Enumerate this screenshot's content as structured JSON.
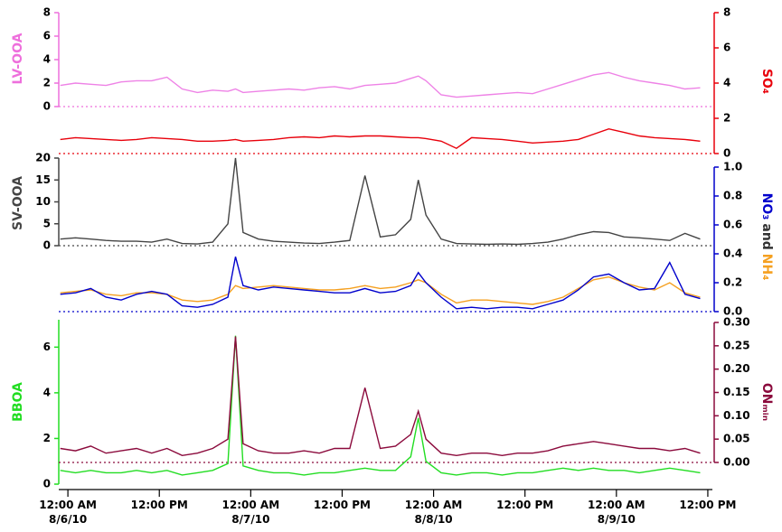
{
  "chart_data": [
    {
      "type": "line",
      "ylabel": "LV-OOA",
      "ycolor": "#ee6fdc",
      "y2label": "SO₄",
      "y2color": "#e8000b",
      "ylim": [
        0,
        8
      ],
      "yticks": [
        0,
        2,
        4,
        6,
        8
      ],
      "y2lim": [
        0,
        8
      ],
      "y2ticks": [
        0,
        2,
        4,
        6,
        8
      ],
      "x": [
        -1,
        1,
        3,
        5,
        7,
        9,
        11,
        13,
        15,
        17,
        19,
        21,
        22,
        23,
        25,
        27,
        29,
        31,
        33,
        35,
        37,
        39,
        41,
        43,
        45,
        46,
        47,
        49,
        51,
        53,
        55,
        57,
        59,
        61,
        63,
        65,
        67,
        69,
        71,
        73,
        75,
        77,
        79,
        81,
        83
      ],
      "series": [
        {
          "color": "#ee82e6",
          "axis": "y",
          "values": [
            1.8,
            2.0,
            1.9,
            1.8,
            2.1,
            2.2,
            2.2,
            2.5,
            1.5,
            1.2,
            1.4,
            1.3,
            1.5,
            1.2,
            1.3,
            1.4,
            1.5,
            1.4,
            1.6,
            1.7,
            1.5,
            1.8,
            1.9,
            2.0,
            2.4,
            2.6,
            2.2,
            1.0,
            0.8,
            0.9,
            1.0,
            1.1,
            1.2,
            1.1,
            1.5,
            1.9,
            2.3,
            2.7,
            2.9,
            2.5,
            2.2,
            2.0,
            1.8,
            1.5,
            1.6
          ]
        },
        {
          "color": "#e8000b",
          "axis": "y2",
          "values": [
            0.8,
            0.9,
            0.85,
            0.8,
            0.75,
            0.8,
            0.9,
            0.85,
            0.8,
            0.7,
            0.7,
            0.75,
            0.8,
            0.7,
            0.75,
            0.8,
            0.9,
            0.95,
            0.9,
            1.0,
            0.95,
            1.0,
            1.0,
            0.95,
            0.9,
            0.9,
            0.85,
            0.7,
            0.3,
            0.9,
            0.85,
            0.8,
            0.7,
            0.6,
            0.65,
            0.7,
            0.8,
            1.1,
            1.4,
            1.2,
            1.0,
            0.9,
            0.85,
            0.8,
            0.7
          ]
        }
      ]
    },
    {
      "type": "line",
      "ylabel": "SV-OOA",
      "ycolor": "#444444",
      "y2label": [
        {
          "text": "NO₃",
          "color": "#0000cc"
        },
        {
          "text": "and",
          "color": "#333333"
        },
        {
          "text": "NH₄",
          "color": "#f5a020"
        }
      ],
      "y2color": "#0000cc",
      "ylim": [
        0,
        20
      ],
      "yticks": [
        0,
        5,
        10,
        15,
        20
      ],
      "y2lim": [
        0,
        1
      ],
      "y2ticks": [
        {
          "value": 0,
          "label": "0.0"
        },
        {
          "value": 0.2,
          "label": "0.2"
        },
        {
          "value": 0.4,
          "label": "0.4"
        },
        {
          "value": 0.6,
          "label": "0.6"
        },
        {
          "value": 0.8,
          "label": "0.8"
        },
        {
          "value": 1,
          "label": "1.0"
        }
      ],
      "x": [
        -1,
        1,
        3,
        5,
        7,
        9,
        11,
        13,
        15,
        17,
        19,
        21,
        22,
        23,
        25,
        27,
        29,
        31,
        33,
        35,
        37,
        39,
        41,
        43,
        45,
        46,
        47,
        49,
        51,
        53,
        55,
        57,
        59,
        61,
        63,
        65,
        67,
        69,
        71,
        73,
        75,
        77,
        79,
        81,
        83
      ],
      "series": [
        {
          "color": "#444444",
          "axis": "y",
          "values": [
            1.5,
            1.8,
            1.5,
            1.2,
            1.0,
            1.0,
            0.8,
            1.5,
            0.5,
            0.4,
            0.8,
            5,
            20,
            3,
            1.5,
            1.0,
            0.8,
            0.6,
            0.5,
            0.8,
            1.2,
            16,
            2.0,
            2.5,
            6,
            15,
            7,
            1.5,
            0.5,
            0.4,
            0.3,
            0.4,
            0.3,
            0.5,
            0.8,
            1.5,
            2.5,
            3.2,
            3.0,
            2.0,
            1.8,
            1.5,
            1.2,
            2.8,
            1.5
          ]
        },
        {
          "color": "#f5a020",
          "axis": "y2",
          "values": [
            0.13,
            0.14,
            0.15,
            0.12,
            0.11,
            0.13,
            0.13,
            0.12,
            0.08,
            0.07,
            0.08,
            0.12,
            0.18,
            0.16,
            0.17,
            0.18,
            0.17,
            0.16,
            0.15,
            0.15,
            0.16,
            0.18,
            0.16,
            0.17,
            0.2,
            0.22,
            0.2,
            0.12,
            0.06,
            0.08,
            0.08,
            0.07,
            0.06,
            0.05,
            0.07,
            0.1,
            0.16,
            0.22,
            0.24,
            0.2,
            0.17,
            0.15,
            0.2,
            0.13,
            0.1
          ]
        },
        {
          "color": "#0000cc",
          "axis": "y2",
          "values": [
            0.12,
            0.13,
            0.16,
            0.1,
            0.08,
            0.12,
            0.14,
            0.12,
            0.04,
            0.03,
            0.05,
            0.1,
            0.38,
            0.18,
            0.15,
            0.17,
            0.16,
            0.15,
            0.14,
            0.13,
            0.13,
            0.16,
            0.13,
            0.14,
            0.18,
            0.27,
            0.2,
            0.1,
            0.02,
            0.03,
            0.02,
            0.03,
            0.03,
            0.02,
            0.05,
            0.08,
            0.15,
            0.24,
            0.26,
            0.2,
            0.15,
            0.16,
            0.34,
            0.12,
            0.09
          ]
        }
      ]
    },
    {
      "type": "line",
      "ylabel": "BBOA",
      "ycolor": "#22dd22",
      "y2label": "ONₘᵢₙ",
      "y2color": "#8b0a3c",
      "ylim": [
        0,
        7.2
      ],
      "yticks": [
        0,
        2,
        4,
        6
      ],
      "y2lim": [
        0,
        0.3
      ],
      "y2ticks": [
        {
          "value": 0,
          "label": "0.00"
        },
        {
          "value": 0.05,
          "label": "0.05"
        },
        {
          "value": 0.1,
          "label": "0.10"
        },
        {
          "value": 0.15,
          "label": "0.15"
        },
        {
          "value": 0.2,
          "label": "0.20"
        },
        {
          "value": 0.25,
          "label": "0.25"
        },
        {
          "value": 0.3,
          "label": "0.30"
        }
      ],
      "xlim": [
        -1.2,
        84.6
      ],
      "xticks": [
        {
          "value": 0,
          "label": "12:00 AM\n8/6/10"
        },
        {
          "value": 12,
          "label": "12:00 PM"
        },
        {
          "value": 24,
          "label": "12:00 AM\n8/7/10"
        },
        {
          "value": 36,
          "label": "12:00 PM"
        },
        {
          "value": 48,
          "label": "12:00 AM\n8/8/10"
        },
        {
          "value": 60,
          "label": "12:00 PM"
        },
        {
          "value": 72,
          "label": "12:00 AM\n8/9/10"
        },
        {
          "value": 84,
          "label": "12:00 PM"
        }
      ],
      "x": [
        -1,
        1,
        3,
        5,
        7,
        9,
        11,
        13,
        15,
        17,
        19,
        21,
        22,
        23,
        25,
        27,
        29,
        31,
        33,
        35,
        37,
        39,
        41,
        43,
        45,
        46,
        47,
        49,
        51,
        53,
        55,
        57,
        59,
        61,
        63,
        65,
        67,
        69,
        71,
        73,
        75,
        77,
        79,
        81,
        83
      ],
      "series": [
        {
          "color": "#22dd22",
          "axis": "y",
          "values": [
            0.6,
            0.5,
            0.6,
            0.5,
            0.5,
            0.6,
            0.5,
            0.6,
            0.4,
            0.5,
            0.6,
            0.9,
            6.5,
            0.8,
            0.6,
            0.5,
            0.5,
            0.4,
            0.5,
            0.5,
            0.6,
            0.7,
            0.6,
            0.6,
            1.2,
            2.9,
            1.0,
            0.5,
            0.4,
            0.5,
            0.5,
            0.4,
            0.5,
            0.5,
            0.6,
            0.7,
            0.6,
            0.7,
            0.6,
            0.6,
            0.5,
            0.6,
            0.7,
            0.6,
            0.5
          ]
        },
        {
          "color": "#8b0a3c",
          "axis": "y2",
          "values": [
            0.03,
            0.025,
            0.035,
            0.02,
            0.025,
            0.03,
            0.02,
            0.03,
            0.015,
            0.02,
            0.03,
            0.05,
            0.27,
            0.04,
            0.025,
            0.02,
            0.02,
            0.025,
            0.02,
            0.03,
            0.03,
            0.16,
            0.03,
            0.035,
            0.06,
            0.11,
            0.05,
            0.02,
            0.015,
            0.02,
            0.02,
            0.015,
            0.02,
            0.02,
            0.025,
            0.035,
            0.04,
            0.045,
            0.04,
            0.035,
            0.03,
            0.03,
            0.025,
            0.03,
            0.02
          ]
        }
      ]
    }
  ]
}
